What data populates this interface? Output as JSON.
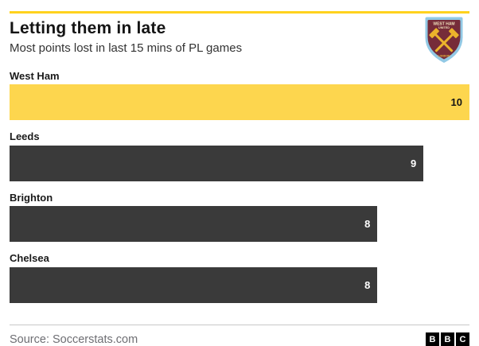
{
  "header": {
    "title": "Letting them in late",
    "subtitle": "Most points lost in last 15 mins of PL games",
    "accent_rule_color": "#FFD21E"
  },
  "chart_data": {
    "type": "bar",
    "orientation": "horizontal",
    "title": "Letting them in late",
    "subtitle": "Most points lost in last 15 mins of PL games",
    "categories": [
      "West Ham",
      "Leeds",
      "Brighton",
      "Chelsea"
    ],
    "values": [
      10,
      9,
      8,
      8
    ],
    "xlim": [
      0,
      10
    ],
    "grid": false,
    "legend": false,
    "highlight_index": 0,
    "highlight_color": "#FDD64E",
    "bar_color": "#3A3A3A",
    "value_color_on_highlight": "#141414",
    "value_color_on_dark": "#FFFFFF"
  },
  "badge": {
    "club": "West Ham United crest",
    "line1": "WEST HAM",
    "line2": "UNITED",
    "line3": "LONDON",
    "shield_border_color": "#92C9E5",
    "shield_color": "#762C39",
    "hammer_color": "#ECB32B"
  },
  "footer": {
    "source": "Source: Soccerstats.com",
    "bbc_logo_letters": [
      "B",
      "B",
      "C"
    ]
  }
}
